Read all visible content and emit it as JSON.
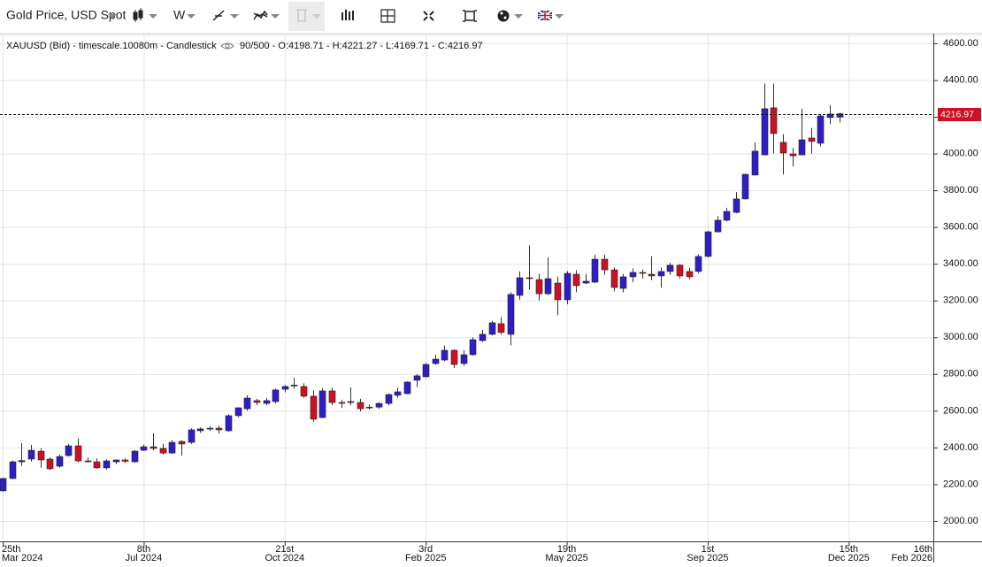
{
  "toolbar": {
    "symbol": "Gold Price, USD Spot",
    "interval": "W"
  },
  "chart_data": {
    "type": "candlestick",
    "title": "XAUUSD (Bid) - timescale.10080m - Candlestick",
    "status": "90/500 - O:4198.71 - H:4221.27 - L:4169.71 - C:4216.97",
    "up_color": "#2e1ec8",
    "down_color": "#cc1122",
    "grid": true,
    "xlim": [
      "2024-03-23",
      "2026-02-16"
    ],
    "xticks": [
      {
        "value": "2024-03-25",
        "label": [
          "25th",
          "Mar 2024"
        ]
      },
      {
        "value": "2024-07-08",
        "label": [
          "8th",
          "Jul 2024"
        ]
      },
      {
        "value": "2024-10-21",
        "label": [
          "21st",
          "Oct 2024"
        ]
      },
      {
        "value": "2025-02-03",
        "label": [
          "3rd",
          "Feb 2025"
        ]
      },
      {
        "value": "2025-05-19",
        "label": [
          "19th",
          "May 2025"
        ]
      },
      {
        "value": "2025-09-01",
        "label": [
          "1st",
          "Sep 2025"
        ]
      },
      {
        "value": "2025-12-15",
        "label": [
          "15th",
          "Dec 2025"
        ]
      },
      {
        "value": "2026-02-16",
        "label": [
          "16th",
          "Feb 2026"
        ]
      }
    ],
    "ylim": [
      1889,
      4653
    ],
    "yticks": [
      {
        "value": 2000,
        "label": "2000.00"
      },
      {
        "value": 2200,
        "label": "2200.00"
      },
      {
        "value": 2400,
        "label": "2400.00"
      },
      {
        "value": 2600,
        "label": "2600.00"
      },
      {
        "value": 2800,
        "label": "2800.00"
      },
      {
        "value": 3000,
        "label": "3000.00"
      },
      {
        "value": 3200,
        "label": "3200.00"
      },
      {
        "value": 3400,
        "label": "3400.00"
      },
      {
        "value": 3600,
        "label": "3600.00"
      },
      {
        "value": 3800,
        "label": "3800.00"
      },
      {
        "value": 4000,
        "label": "4000.00"
      },
      {
        "value": 4200,
        "label": "4200.00"
      },
      {
        "value": 4400,
        "label": "4400.00"
      },
      {
        "value": 4600,
        "label": "4600.00"
      }
    ],
    "x": [
      "2024-03-25",
      "2024-04-01",
      "2024-04-08",
      "2024-04-15",
      "2024-04-22",
      "2024-04-29",
      "2024-05-06",
      "2024-05-13",
      "2024-05-20",
      "2024-05-27",
      "2024-06-03",
      "2024-06-10",
      "2024-06-17",
      "2024-06-24",
      "2024-07-01",
      "2024-07-08",
      "2024-07-15",
      "2024-07-22",
      "2024-07-29",
      "2024-08-05",
      "2024-08-12",
      "2024-08-19",
      "2024-08-26",
      "2024-09-02",
      "2024-09-09",
      "2024-09-16",
      "2024-09-23",
      "2024-09-30",
      "2024-10-07",
      "2024-10-14",
      "2024-10-21",
      "2024-10-28",
      "2024-11-04",
      "2024-11-11",
      "2024-11-18",
      "2024-11-25",
      "2024-12-02",
      "2024-12-09",
      "2024-12-16",
      "2024-12-23",
      "2024-12-30",
      "2025-01-06",
      "2025-01-13",
      "2025-01-20",
      "2025-01-27",
      "2025-02-03",
      "2025-02-10",
      "2025-02-17",
      "2025-02-24",
      "2025-03-03",
      "2025-03-10",
      "2025-03-17",
      "2025-03-24",
      "2025-03-31",
      "2025-04-07",
      "2025-04-14",
      "2025-04-21",
      "2025-04-28",
      "2025-05-05",
      "2025-05-12",
      "2025-05-19",
      "2025-05-26",
      "2025-06-02",
      "2025-06-09",
      "2025-06-16",
      "2025-06-23",
      "2025-06-30",
      "2025-07-07",
      "2025-07-14",
      "2025-07-21",
      "2025-07-28",
      "2025-08-04",
      "2025-08-11",
      "2025-08-18",
      "2025-08-25",
      "2025-09-01",
      "2025-09-08",
      "2025-09-15",
      "2025-09-22",
      "2025-09-29",
      "2025-10-06",
      "2025-10-13",
      "2025-10-20",
      "2025-10-27",
      "2025-11-03",
      "2025-11-10",
      "2025-11-17",
      "2025-11-24",
      "2025-12-01",
      "2025-12-08"
    ],
    "open": [
      2164,
      2231,
      2322,
      2337,
      2380,
      2337,
      2298,
      2356,
      2409,
      2327,
      2322,
      2289,
      2322,
      2332,
      2322,
      2385,
      2404,
      2395,
      2370,
      2433,
      2428,
      2491,
      2501,
      2505,
      2491,
      2573,
      2611,
      2655,
      2640,
      2650,
      2717,
      2740,
      2732,
      2679,
      2563,
      2708,
      2645,
      2645,
      2645,
      2620,
      2620,
      2640,
      2684,
      2693,
      2766,
      2785,
      2857,
      2876,
      2929,
      2857,
      2905,
      2982,
      3016,
      3074,
      3016,
      3228,
      3324,
      3314,
      3237,
      3295,
      3204,
      3343,
      3295,
      3300,
      3425,
      3367,
      3266,
      3329,
      3353,
      3343,
      3334,
      3358,
      3392,
      3358,
      3358,
      3440,
      3574,
      3637,
      3680,
      3753,
      3883,
      3993,
      4249,
      4061,
      3998,
      3993,
      4085,
      4056,
      4196,
      4198.71
    ],
    "high": [
      2235,
      2330,
      2424,
      2414,
      2395,
      2345,
      2360,
      2420,
      2450,
      2345,
      2340,
      2335,
      2335,
      2340,
      2385,
      2415,
      2477,
      2420,
      2440,
      2440,
      2505,
      2510,
      2515,
      2520,
      2580,
      2620,
      2685,
      2665,
      2670,
      2720,
      2740,
      2780,
      2750,
      2710,
      2722,
      2725,
      2660,
      2727,
      2665,
      2635,
      2645,
      2695,
      2725,
      2760,
      2800,
      2860,
      2905,
      2955,
      2935,
      2930,
      3000,
      3040,
      3090,
      3110,
      3245,
      3358,
      3500,
      3345,
      3435,
      3330,
      3360,
      3365,
      3345,
      3450,
      3450,
      3380,
      3345,
      3375,
      3370,
      3440,
      3380,
      3405,
      3400,
      3378,
      3452,
      3580,
      3660,
      3705,
      3790,
      3890,
      4060,
      4381,
      4381,
      4105,
      4030,
      4245,
      4140,
      4215,
      4264,
      4221.27
    ],
    "low": [
      2160,
      2228,
      2300,
      2323,
      2290,
      2277,
      2290,
      2350,
      2320,
      2318,
      2285,
      2280,
      2310,
      2315,
      2318,
      2380,
      2385,
      2360,
      2365,
      2356,
      2420,
      2480,
      2490,
      2475,
      2485,
      2565,
      2600,
      2630,
      2630,
      2640,
      2700,
      2720,
      2670,
      2540,
      2560,
      2630,
      2615,
      2630,
      2596,
      2605,
      2610,
      2630,
      2670,
      2690,
      2730,
      2780,
      2850,
      2870,
      2833,
      2845,
      2900,
      2975,
      3010,
      3015,
      2957,
      3205,
      3260,
      3200,
      3230,
      3120,
      3180,
      3245,
      3290,
      3295,
      3340,
      3250,
      3245,
      3300,
      3320,
      3310,
      3270,
      3340,
      3320,
      3315,
      3350,
      3435,
      3570,
      3630,
      3675,
      3750,
      3880,
      3990,
      4000,
      3886,
      3930,
      3990,
      4000,
      4040,
      4160,
      4169.71
    ],
    "close": [
      2231,
      2322,
      2329,
      2385,
      2332,
      2284,
      2351,
      2409,
      2327,
      2322,
      2289,
      2327,
      2332,
      2325,
      2380,
      2404,
      2395,
      2370,
      2428,
      2419,
      2496,
      2501,
      2505,
      2496,
      2573,
      2616,
      2669,
      2645,
      2655,
      2713,
      2732,
      2736,
      2679,
      2554,
      2708,
      2645,
      2641,
      2650,
      2611,
      2616,
      2640,
      2688,
      2703,
      2756,
      2790,
      2852,
      2881,
      2929,
      2852,
      2905,
      2987,
      3016,
      3079,
      3026,
      3233,
      3324,
      3319,
      3237,
      3319,
      3204,
      3348,
      3281,
      3305,
      3425,
      3367,
      3271,
      3329,
      3353,
      3348,
      3334,
      3358,
      3392,
      3334,
      3329,
      3440,
      3574,
      3637,
      3685,
      3753,
      3887,
      4013,
      4244,
      4109,
      4003,
      3988,
      4075,
      4066,
      4205,
      4215,
      4216.97
    ]
  }
}
